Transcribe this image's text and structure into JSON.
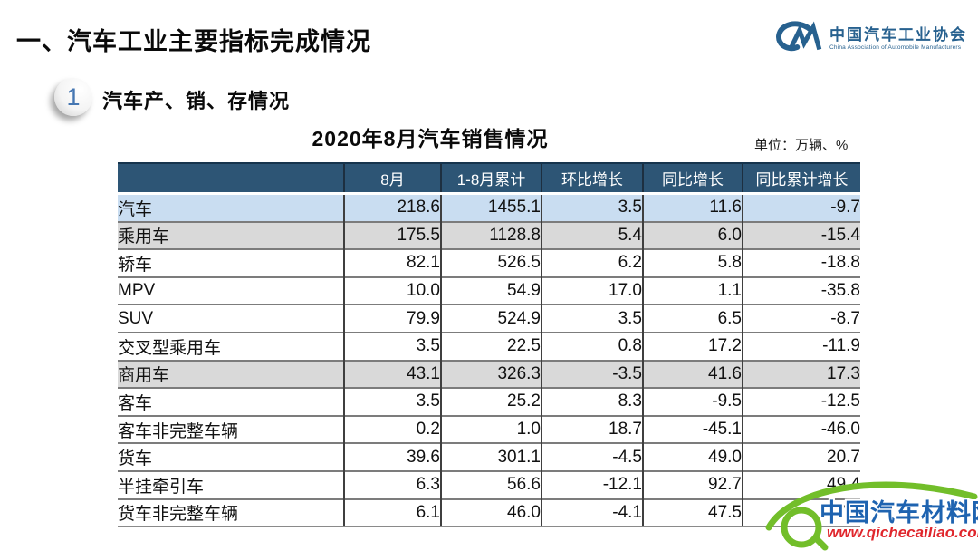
{
  "page": {
    "main_title": "一、汽车工业主要指标完成情况",
    "section_number": "1",
    "section_title": "汽车产、销、存情况"
  },
  "logo": {
    "org_name": "中国汽车工业协会",
    "org_caption": "China Association of Automobile Manufacturers"
  },
  "table": {
    "title": "2020年8月汽车销售情况",
    "unit": "单位：万辆、%",
    "columns": [
      "",
      "8月",
      "1-8月累计",
      "环比增长",
      "同比增长",
      "同比累计增长"
    ],
    "rows": [
      {
        "label": "汽车",
        "indent": 0,
        "style": "blue",
        "values": [
          "218.6",
          "1455.1",
          "3.5",
          "11.6",
          "-9.7"
        ]
      },
      {
        "label": "乘用车",
        "indent": 1,
        "style": "gray",
        "values": [
          "175.5",
          "1128.8",
          "5.4",
          "6.0",
          "-15.4"
        ]
      },
      {
        "label": "轿车",
        "indent": 3,
        "style": "white",
        "values": [
          "82.1",
          "526.5",
          "6.2",
          "5.8",
          "-18.8"
        ]
      },
      {
        "label": "MPV",
        "indent": 3,
        "style": "white",
        "values": [
          "10.0",
          "54.9",
          "17.0",
          "1.1",
          "-35.8"
        ]
      },
      {
        "label": "SUV",
        "indent": 3,
        "style": "white",
        "values": [
          "79.9",
          "524.9",
          "3.5",
          "6.5",
          "-8.7"
        ]
      },
      {
        "label": "交叉型乘用车",
        "indent": 3,
        "style": "white",
        "values": [
          "3.5",
          "22.5",
          "0.8",
          "17.2",
          "-11.9"
        ]
      },
      {
        "label": "商用车",
        "indent": 1,
        "style": "gray",
        "values": [
          "43.1",
          "326.3",
          "-3.5",
          "41.6",
          "17.3"
        ]
      },
      {
        "label": "客车",
        "indent": 2,
        "style": "white",
        "values": [
          "3.5",
          "25.2",
          "8.3",
          "-9.5",
          "-12.5"
        ]
      },
      {
        "label": "客车非完整车辆",
        "indent": 4,
        "style": "white",
        "values": [
          "0.2",
          "1.0",
          "18.7",
          "-45.1",
          "-46.0"
        ]
      },
      {
        "label": "货车",
        "indent": 2,
        "style": "white",
        "values": [
          "39.6",
          "301.1",
          "-4.5",
          "49.0",
          "20.7"
        ]
      },
      {
        "label": "半挂牵引车",
        "indent": 4,
        "style": "white",
        "values": [
          "6.3",
          "56.6",
          "-12.1",
          "92.7",
          "49.4"
        ]
      },
      {
        "label": "货车非完整车辆",
        "indent": 4,
        "style": "white",
        "values": [
          "6.1",
          "46.0",
          "-4.1",
          "47.5",
          "17.7"
        ]
      }
    ]
  },
  "watermark": {
    "site_name": "中国汽车材料网",
    "site_url": "www.qichecailiao.com"
  },
  "colors": {
    "header_bg": "#2D5575",
    "row_blue": "#C9DDF1",
    "row_gray": "#D9D9D9",
    "logo_blue": "#27618F",
    "watermark_green": "#72BE2A",
    "watermark_blue": "#1E63B0",
    "watermark_red": "#E0262C"
  }
}
